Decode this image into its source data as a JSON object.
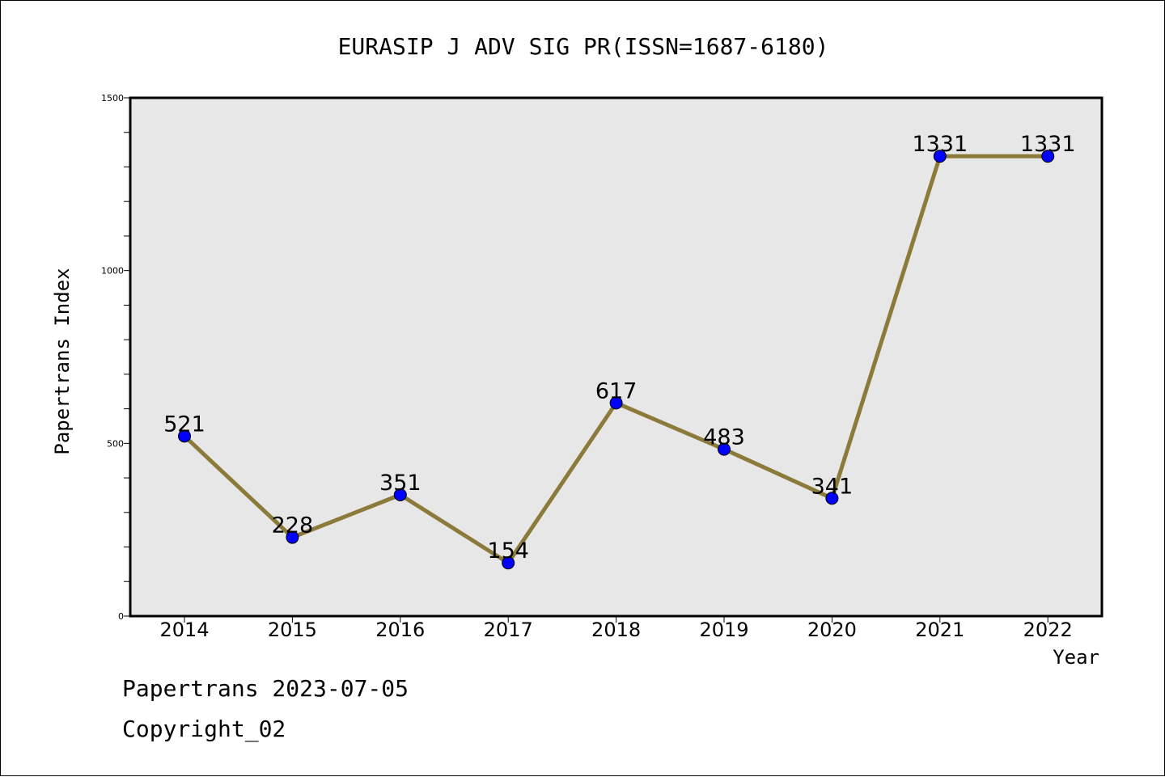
{
  "chart_data": {
    "type": "line",
    "title": "EURASIP J ADV SIG PR(ISSN=1687-6180)",
    "xlabel": "Year",
    "ylabel": "Papertrans Index",
    "categories": [
      "2014",
      "2015",
      "2016",
      "2017",
      "2018",
      "2019",
      "2020",
      "2021",
      "2022"
    ],
    "values": [
      521,
      228,
      351,
      154,
      617,
      483,
      341,
      1331,
      1331
    ],
    "ylim": [
      0,
      1500
    ],
    "yticks": [
      0,
      500,
      1000,
      1500
    ],
    "y_minor_step": 100,
    "grid": false,
    "line_color": "#8b7a3a",
    "marker_color": "#0000ff",
    "plot_background": "#e7e7e7"
  },
  "footer": {
    "line1": "Papertrans 2023-07-05",
    "line2": "Copyright_02"
  }
}
